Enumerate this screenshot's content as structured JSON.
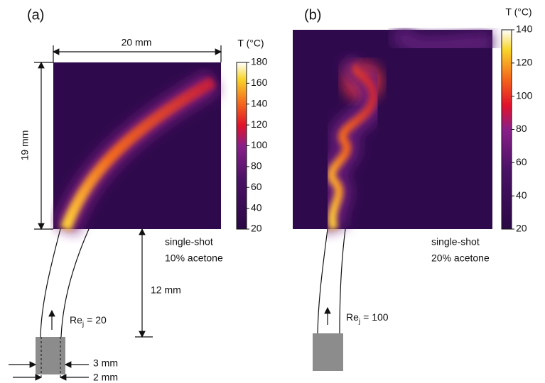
{
  "panels": [
    {
      "label": "(a)",
      "colorbar": {
        "title": "T (°C)",
        "lim": [
          20,
          180
        ],
        "ticks": [
          20,
          40,
          60,
          80,
          100,
          120,
          140,
          160,
          180
        ]
      },
      "width_label": "20 mm",
      "height_label": "19 mm",
      "distance_label": "12 mm",
      "reynolds": {
        "base": "Re",
        "sub": "j",
        "rest": "= 20"
      },
      "note": [
        "single-shot",
        "10% acetone"
      ],
      "dims": [
        "3 mm",
        "2 mm"
      ]
    },
    {
      "label": "(b)",
      "colorbar": {
        "title": "T (°C)",
        "lim": [
          20,
          140
        ],
        "ticks": [
          20,
          40,
          60,
          80,
          100,
          120,
          140
        ]
      },
      "reynolds": {
        "base": "Re",
        "sub": "j",
        "rest": "= 100"
      },
      "note": [
        "single-shot",
        "20% acetone"
      ]
    }
  ]
}
